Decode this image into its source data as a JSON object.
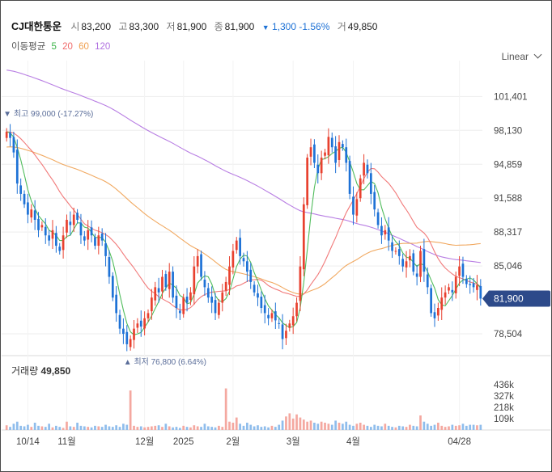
{
  "header": {
    "name": "CJ대한통운",
    "open_label": "시",
    "open": "83,200",
    "high_label": "고",
    "high": "83,300",
    "low_label": "저",
    "low": "81,900",
    "close_label": "종",
    "close": "81,900",
    "change_arrow": "▼",
    "change": "1,300",
    "change_pct": "-1.56%",
    "volume_label": "거",
    "volume": "49,850"
  },
  "ma_legend": {
    "label": "이동평균",
    "periods": [
      "5",
      "20",
      "60",
      "120"
    ],
    "colors": [
      "#3db54a",
      "#f06a6a",
      "#f0a050",
      "#b070e0"
    ]
  },
  "scale_mode": "Linear",
  "chart_data": {
    "type": "candlestick",
    "y_ticks": [
      "101,401",
      "98,130",
      "94,859",
      "91,588",
      "88,317",
      "85,046",
      "78,504"
    ],
    "y_tick_values": [
      101401,
      98130,
      94859,
      91588,
      88317,
      85046,
      78504
    ],
    "ylim": [
      76400,
      103300
    ],
    "x_ticks": [
      "10/14",
      "11월",
      "12월",
      "2025",
      "2월",
      "3월",
      "4월",
      "04/28"
    ],
    "last_price_label": "81,900",
    "last_price": 81900,
    "high_annotation": "▼ 최고 99,000 (-17.27%)",
    "high_value": 99000,
    "low_annotation": "▲ 최저 76,800 (6.64%)",
    "low_value": 76800,
    "colors": {
      "up": "#e8412f",
      "down": "#1e72d6",
      "ma5": "#3db54a",
      "ma20": "#f06a6a",
      "ma60": "#f0a050",
      "ma120": "#b070e0",
      "last_price_bg": "#2d4a8a"
    },
    "closes": [
      98000,
      97400,
      96000,
      93000,
      92000,
      91000,
      90000,
      90500,
      89500,
      88500,
      89000,
      88000,
      87500,
      88500,
      87000,
      86500,
      88000,
      89500,
      89000,
      90000,
      89500,
      88000,
      87500,
      88500,
      88000,
      87000,
      88000,
      87500,
      86000,
      84000,
      82000,
      80500,
      79000,
      78500,
      77500,
      78000,
      79000,
      79500,
      79200,
      80000,
      80500,
      82000,
      83000,
      82500,
      84000,
      83000,
      84500,
      82000,
      81000,
      80500,
      82000,
      81500,
      82500,
      85000,
      86000,
      84000,
      83000,
      82000,
      81500,
      80500,
      81500,
      82500,
      83500,
      85000,
      86500,
      87500,
      86000,
      85500,
      84500,
      83500,
      82500,
      82000,
      81000,
      80500,
      80000,
      80500,
      79800,
      79500,
      78000,
      78800,
      79500,
      80200,
      81500,
      85000,
      91000,
      95500,
      96500,
      95000,
      94000,
      95500,
      96000,
      97500,
      96500,
      95000,
      97000,
      96500,
      95000,
      92000,
      90000,
      91500,
      93500,
      95000,
      94000,
      92000,
      90500,
      89000,
      88000,
      88500,
      87500,
      86500,
      86500,
      86000,
      85000,
      85500,
      86000,
      84500,
      84000,
      86500,
      84500,
      83000,
      80500,
      80000,
      81000,
      82000,
      82500,
      83000,
      82500,
      84000,
      85000,
      84000,
      83300,
      83200,
      83000,
      83200,
      81900
    ],
    "volume": {
      "title": "거래량",
      "current": "49,850",
      "ticks": [
        "436k",
        "327k",
        "218k",
        "109k"
      ],
      "tick_values": [
        436000,
        327000,
        218000,
        109000
      ],
      "max": 560000,
      "values": [
        45000,
        30000,
        60000,
        80000,
        40000,
        35000,
        50000,
        30000,
        70000,
        40000,
        35000,
        30000,
        60000,
        25000,
        40000,
        30000,
        20000,
        80000,
        35000,
        30000,
        70000,
        40000,
        35000,
        30000,
        25000,
        40000,
        35000,
        30000,
        50000,
        35000,
        30000,
        45000,
        30000,
        60000,
        50000,
        380000,
        40000,
        30000,
        35000,
        25000,
        30000,
        35000,
        40000,
        45000,
        30000,
        60000,
        35000,
        25000,
        30000,
        20000,
        40000,
        30000,
        25000,
        45000,
        35000,
        30000,
        60000,
        35000,
        30000,
        25000,
        40000,
        30000,
        400000,
        80000,
        70000,
        120000,
        60000,
        40000,
        70000,
        50000,
        35000,
        45000,
        30000,
        35000,
        25000,
        40000,
        30000,
        50000,
        90000,
        130000,
        160000,
        110000,
        150000,
        120000,
        100000,
        80000,
        90000,
        70000,
        60000,
        80000,
        70000,
        60000,
        50000,
        90000,
        70000,
        60000,
        80000,
        50000,
        40000,
        60000,
        70000,
        50000,
        40000,
        30000,
        50000,
        40000,
        35000,
        60000,
        40000,
        30000,
        25000,
        40000,
        35000,
        30000,
        50000,
        40000,
        35000,
        140000,
        80000,
        60000,
        40000,
        50000,
        70000,
        40000,
        30000,
        35000,
        50000,
        40000,
        45000,
        60000,
        40000,
        50000,
        49850,
        45000,
        49850
      ]
    }
  }
}
